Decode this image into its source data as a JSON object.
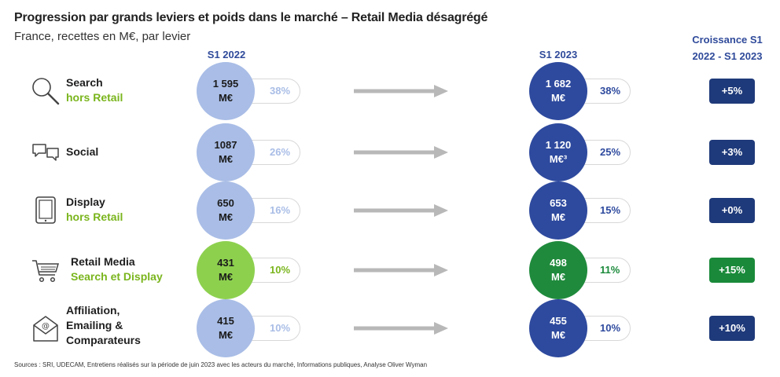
{
  "title": "Progression par grands leviers et poids dans le marché – Retail Media désagrégé",
  "subtitle": "France, recettes en M€, par levier",
  "col_2022": "S1 2022",
  "col_2023": "S1 2023",
  "col_growth_l1": "Croissance S1",
  "col_growth_l2": "2022 - S1 2023",
  "source": "Sources : SRI, UDECAM, Entretiens réalisés sur la période de juin 2023 avec les acteurs du marché, Informations publiques, Analyse Oliver Wyman",
  "colors": {
    "circle_2022_blue": "#a9bde6",
    "circle_2022_green": "#8dd04e",
    "circle_2023_blue": "#2e4a9e",
    "circle_2023_green": "#1f8a3c",
    "badge_blue": "#1f3a7a",
    "badge_green": "#1a8a3a",
    "arrow": "#b8b8b8",
    "pct_2022_blue": "#a9bde6",
    "pct_2022_green": "#7ab51d",
    "pct_2023_blue": "#2e4a9e",
    "pct_2023_green": "#1a8a3a"
  },
  "chart_data": {
    "type": "table",
    "title": "Progression par grands leviers et poids dans le marché – Retail Media désagrégé",
    "subtitle": "France, recettes en M€, par levier",
    "columns": [
      "S1 2022",
      "S1 2023",
      "Croissance S1 2022 - S1 2023"
    ],
    "rows": [
      {
        "icon": "search-icon",
        "label_l1": "Search",
        "label_l2": "hors Retail",
        "v2022_l1": "1 595",
        "v2022_l2": "M€",
        "pct2022": "38%",
        "v2023_l1": "1 682",
        "v2023_l2": "M€",
        "pct2023": "38%",
        "growth": "+5%",
        "highlight": false
      },
      {
        "icon": "chat-bubbles-icon",
        "label_l1": "Social",
        "label_l2": "",
        "v2022_l1": "1087",
        "v2022_l2": "M€",
        "pct2022": "26%",
        "v2023_l1": "1 120",
        "v2023_l2": "M€³",
        "pct2023": "25%",
        "growth": "+3%",
        "highlight": false
      },
      {
        "icon": "tablet-icon",
        "label_l1": "Display",
        "label_l2": "hors Retail",
        "v2022_l1": "650",
        "v2022_l2": "M€",
        "pct2022": "16%",
        "v2023_l1": "653",
        "v2023_l2": "M€",
        "pct2023": "15%",
        "growth": "+0%",
        "highlight": false
      },
      {
        "icon": "shopping-cart-icon",
        "label_l1": "Retail Media",
        "label_l2": "Search et Display",
        "v2022_l1": "431",
        "v2022_l2": "M€",
        "pct2022": "10%",
        "v2023_l1": "498",
        "v2023_l2": "M€",
        "pct2023": "11%",
        "growth": "+15%",
        "highlight": true
      },
      {
        "icon": "email-icon",
        "label_l1": "Affiliation,",
        "label_l2": "Emailing &",
        "label_l3": "Comparateurs",
        "v2022_l1": "415",
        "v2022_l2": "M€",
        "pct2022": "10%",
        "v2023_l1": "455",
        "v2023_l2": "M€",
        "pct2023": "10%",
        "growth": "+10%",
        "highlight": false
      }
    ]
  }
}
